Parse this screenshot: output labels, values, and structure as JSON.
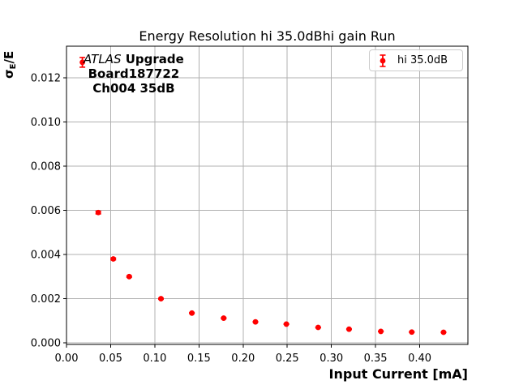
{
  "figure": {
    "title": "Energy Resolution hi 35.0dBhi gain Run",
    "xlabel": "Input Current [mA]",
    "ylabel": {
      "sigma": "σ",
      "subscript": "E",
      "rest": "/E"
    },
    "annotation": {
      "experiment_italic": "ATLAS",
      "experiment_bold": " Upgrade",
      "board": "Board187722",
      "channel": "Ch004 35dB"
    },
    "legend": {
      "entry": "hi 35.0dB"
    }
  },
  "colors": {
    "series": "#ff0000",
    "grid": "#b0b0b0",
    "spine": "#000000",
    "text": "#000000",
    "legend_border": "#cccccc",
    "background": "#ffffff"
  },
  "chart_data": {
    "type": "scatter",
    "title": "Energy Resolution hi 35.0dBhi gain Run",
    "xlabel": "Input Current [mA]",
    "ylabel": "sigma_E/E",
    "series": [
      {
        "name": "hi 35.0dB",
        "color": "#ff0000",
        "marker": "o",
        "x": [
          0.018,
          0.036,
          0.053,
          0.071,
          0.107,
          0.142,
          0.178,
          0.214,
          0.249,
          0.285,
          0.32,
          0.356,
          0.391,
          0.427
        ],
        "y": [
          0.0127,
          0.0059,
          0.0038,
          0.003,
          0.002,
          0.00135,
          0.00112,
          0.00095,
          0.00085,
          0.0007,
          0.00062,
          0.00052,
          0.00049,
          0.00048
        ],
        "yerr": [
          0.00022,
          6e-05,
          4e-05,
          3e-05,
          2e-05,
          2e-05,
          2e-05,
          1e-05,
          1e-05,
          1e-05,
          1e-05,
          1e-05,
          1e-05,
          1e-05
        ]
      }
    ],
    "xlim": [
      0.0,
      0.4546
    ],
    "ylim": [
      -7e-05,
      0.01343
    ],
    "xtick_values": [
      0.0,
      0.05,
      0.1,
      0.15,
      0.2,
      0.25,
      0.3,
      0.35,
      0.4
    ],
    "xtick_labels": [
      "0.00",
      "0.05",
      "0.10",
      "0.15",
      "0.20",
      "0.25",
      "0.30",
      "0.35",
      "0.40"
    ],
    "ytick_values": [
      0.0,
      0.002,
      0.004,
      0.006,
      0.008,
      0.01,
      0.012
    ],
    "ytick_labels": [
      "0.000",
      "0.002",
      "0.004",
      "0.006",
      "0.008",
      "0.010",
      "0.012"
    ],
    "grid": true,
    "legend_position": "upper right"
  }
}
